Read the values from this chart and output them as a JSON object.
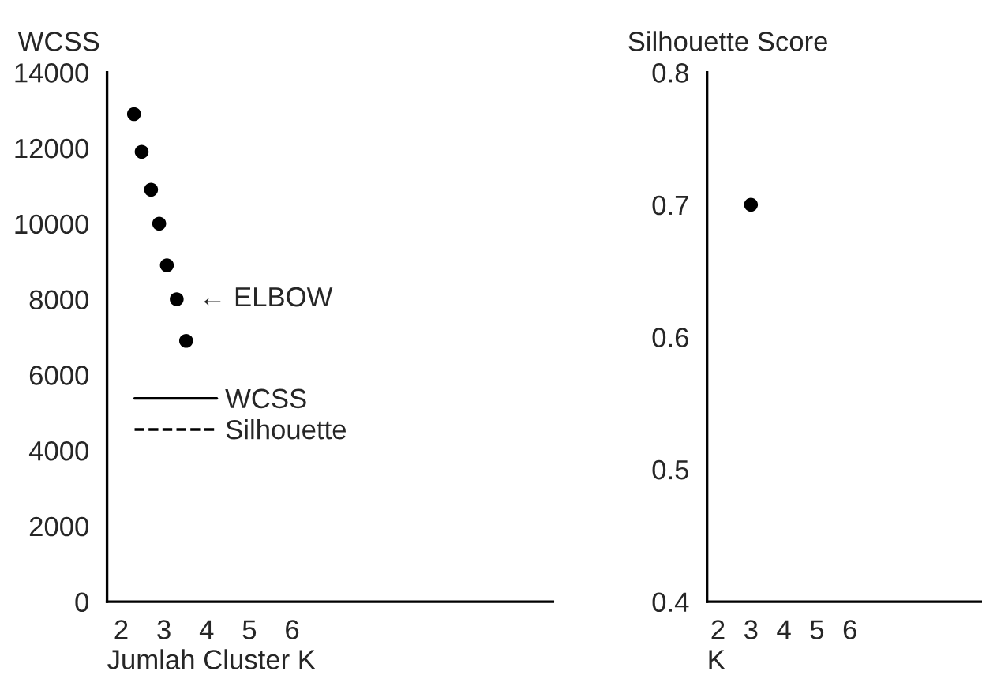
{
  "chart_data": [
    {
      "type": "scatter",
      "xlabel": "Jumlah Cluster K",
      "ylabel": "WCSS",
      "xlim": [
        1.67,
        12.1
      ],
      "xticks": [
        2,
        3,
        4,
        5,
        6
      ],
      "ylim": [
        0,
        14000
      ],
      "yticks": [
        0,
        2000,
        4000,
        6000,
        8000,
        10000,
        12000,
        14000
      ],
      "grid": false,
      "marker": "circle",
      "legend": "center",
      "series": [
        {
          "name": "WCSS",
          "color": "#000000",
          "line_style": "solid",
          "x": [
            2.3,
            2.48,
            2.7,
            2.89,
            3.07,
            3.3,
            3.52
          ],
          "values": [
            12900,
            11900,
            10900,
            10000,
            8900,
            8000,
            6900
          ]
        },
        {
          "name": "Silhouette",
          "color": "#000000",
          "line_style": "dashed"
        }
      ],
      "annotations": [
        {
          "text": "← ELBOW",
          "x": 3.3,
          "y": 8000
        }
      ]
    },
    {
      "type": "scatter",
      "xlabel": "K",
      "ylabel": "Silhouette Score",
      "xlim": [
        1.67,
        10
      ],
      "xticks": [
        2,
        3,
        4,
        5,
        6
      ],
      "ylim": [
        0.4,
        0.8
      ],
      "yticks": [
        0.4,
        0.5,
        0.6,
        0.7,
        0.8
      ],
      "grid": false,
      "marker": "circle",
      "series": [
        {
          "color": "#000000",
          "x": [
            3
          ],
          "values": [
            0.7
          ]
        }
      ]
    }
  ]
}
